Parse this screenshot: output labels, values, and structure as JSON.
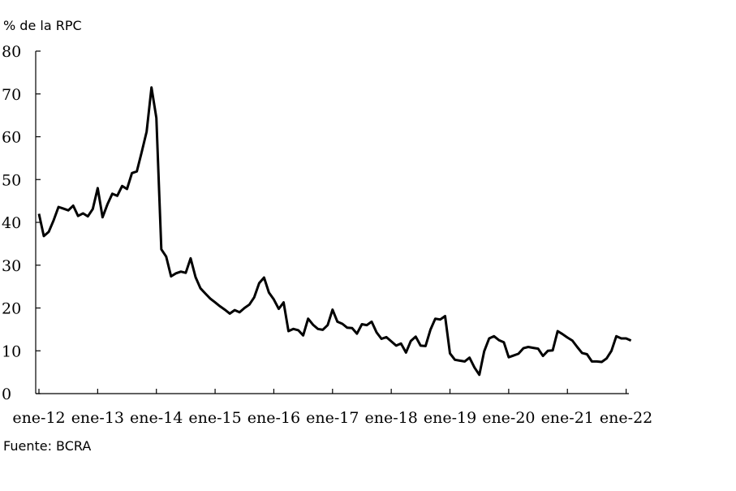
{
  "chart_data": {
    "type": "line",
    "ylabel": "% de la RPC",
    "source": "Fuente: BCRA",
    "ylim": [
      0,
      80
    ],
    "yticks": [
      "0",
      "10",
      "20",
      "30",
      "40",
      "50",
      "60",
      "70",
      "80"
    ],
    "xtick_labels": [
      "ene-12",
      "ene-13",
      "ene-14",
      "ene-15",
      "ene-16",
      "ene-17",
      "ene-18",
      "ene-19",
      "ene-20",
      "ene-21",
      "ene-22"
    ],
    "grid": false,
    "series": [
      {
        "x": [
          "2012-01",
          "2012-02",
          "2012-03",
          "2012-04",
          "2012-05",
          "2012-06",
          "2012-07",
          "2012-08",
          "2012-09",
          "2012-10",
          "2012-11",
          "2012-12",
          "2013-01",
          "2013-02",
          "2013-03",
          "2013-04",
          "2013-05",
          "2013-06",
          "2013-07",
          "2013-08",
          "2013-09",
          "2013-10",
          "2013-11",
          "2013-12",
          "2014-01",
          "2014-02",
          "2014-03",
          "2014-04",
          "2014-05",
          "2014-06",
          "2014-07",
          "2014-08",
          "2014-09",
          "2014-10",
          "2014-11",
          "2014-12",
          "2015-01",
          "2015-02",
          "2015-03",
          "2015-04",
          "2015-05",
          "2015-06",
          "2015-07",
          "2015-08",
          "2015-09",
          "2015-10",
          "2015-11",
          "2015-12",
          "2016-01",
          "2016-02",
          "2016-03",
          "2016-04",
          "2016-05",
          "2016-06",
          "2016-07",
          "2016-08",
          "2016-09",
          "2016-10",
          "2016-11",
          "2016-12",
          "2017-01",
          "2017-02",
          "2017-03",
          "2017-04",
          "2017-05",
          "2017-06",
          "2017-07",
          "2017-08",
          "2017-09",
          "2017-10",
          "2017-11",
          "2017-12",
          "2018-01",
          "2018-02",
          "2018-03",
          "2018-04",
          "2018-05",
          "2018-06",
          "2018-07",
          "2018-08",
          "2018-09",
          "2018-10",
          "2018-11",
          "2018-12",
          "2019-01",
          "2019-02",
          "2019-03",
          "2019-04",
          "2019-05",
          "2019-06",
          "2019-07",
          "2019-08",
          "2019-09",
          "2019-10",
          "2019-11",
          "2019-12",
          "2020-01",
          "2020-02",
          "2020-03",
          "2020-04",
          "2020-05",
          "2020-06",
          "2020-07",
          "2020-08",
          "2020-09",
          "2020-10",
          "2020-11",
          "2020-12",
          "2021-01",
          "2021-02",
          "2021-03",
          "2021-04",
          "2021-05",
          "2021-06",
          "2021-07",
          "2021-08",
          "2021-09",
          "2021-10",
          "2021-11",
          "2021-12",
          "2022-01",
          "2022-02"
        ],
        "values": [
          42,
          36.8,
          37.8,
          40.5,
          43.6,
          43.2,
          42.8,
          43.9,
          41.5,
          42.1,
          41.4,
          43.1,
          48,
          41.2,
          44.2,
          46.7,
          46.2,
          48.5,
          47.8,
          51.5,
          51.9,
          56.4,
          61.2,
          71.5,
          64.4,
          33.7,
          32,
          27.4,
          28.1,
          28.5,
          28.2,
          31.6,
          27.2,
          24.6,
          23.4,
          22.2,
          21.3,
          20.4,
          19.6,
          18.7,
          19.5,
          19,
          20,
          20.8,
          22.5,
          25.8,
          27.1,
          23.6,
          22,
          19.8,
          21.3,
          14.6,
          15.1,
          14.8,
          13.6,
          17.5,
          16.1,
          15.1,
          14.9,
          16,
          19.6,
          16.8,
          16.3,
          15.4,
          15.3,
          14,
          16.2,
          16,
          16.8,
          14.3,
          12.8,
          13.2,
          12.2,
          11.2,
          11.7,
          9.6,
          12.3,
          13.3,
          11.2,
          11.1,
          14.9,
          17.5,
          17.3,
          18.1,
          9.4,
          7.9,
          7.7,
          7.5,
          8.4,
          6.1,
          4.4,
          9.9,
          12.9,
          13.4,
          12.5,
          12,
          8.5,
          8.9,
          9.3,
          10.6,
          10.9,
          10.7,
          10.5,
          8.8,
          10,
          10.1,
          14.6,
          13.9,
          13.1,
          12.4,
          10.9,
          9.5,
          9.2,
          7.5,
          7.5,
          7.4,
          8.2,
          10,
          13.4,
          12.9,
          12.9,
          12.4
        ]
      }
    ]
  }
}
